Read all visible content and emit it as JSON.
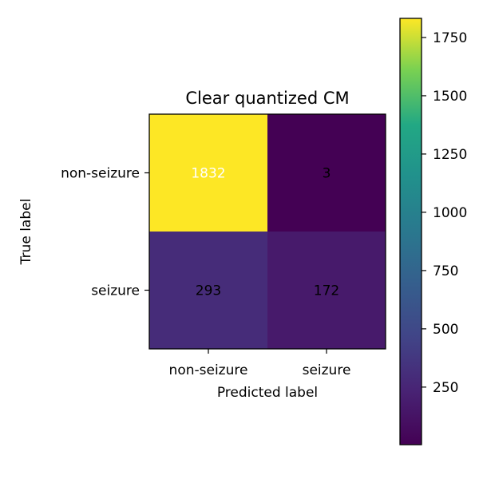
{
  "chart_data": {
    "type": "heatmap",
    "title": "Clear quantized CM",
    "xlabel": "Predicted label",
    "ylabel": "True label",
    "x_categories": [
      "non-seizure",
      "seizure"
    ],
    "y_categories": [
      "non-seizure",
      "seizure"
    ],
    "values": [
      [
        1832,
        3
      ],
      [
        293,
        172
      ]
    ],
    "colormap": "viridis",
    "colorbar": {
      "range": [
        3,
        1832
      ],
      "ticks": [
        250,
        500,
        750,
        1000,
        1250,
        1500,
        1750
      ]
    },
    "grid": false,
    "cell_label_colors": {
      "light": "#ffffff",
      "dark": "#000000"
    }
  }
}
